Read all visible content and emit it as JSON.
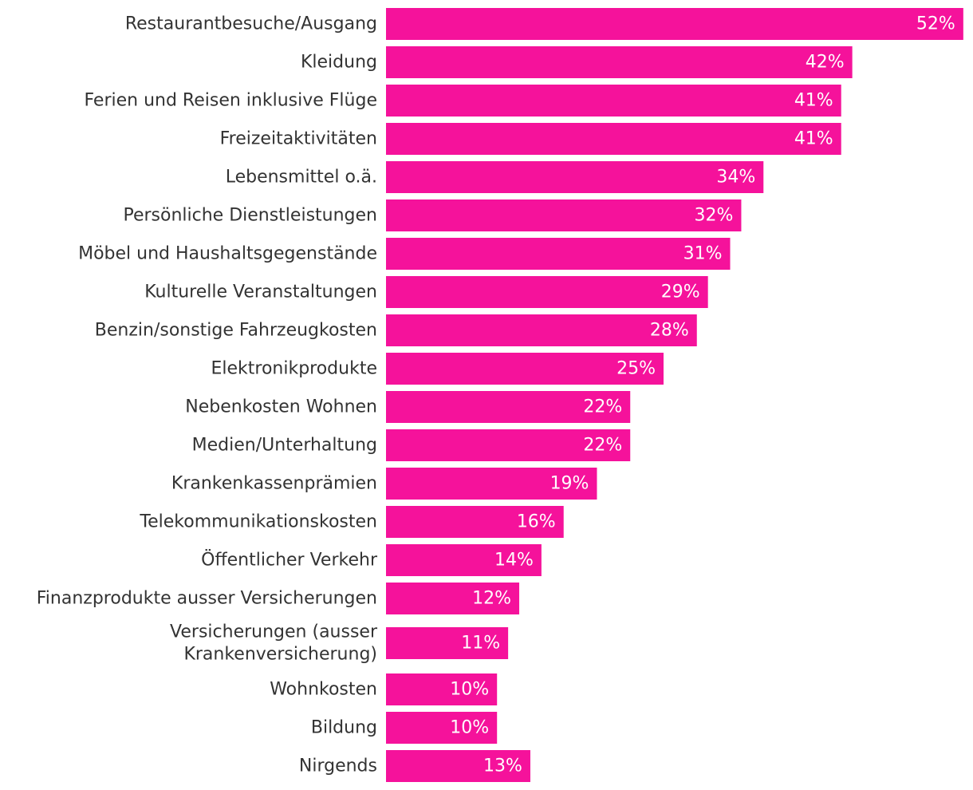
{
  "chart_data": {
    "type": "bar",
    "orientation": "horizontal",
    "categories": [
      "Restaurantbesuche/Ausgang",
      "Kleidung",
      "Ferien und Reisen inklusive Flüge",
      "Freizeitaktivitäten",
      "Lebensmittel o.ä.",
      "Persönliche Dienstleistungen",
      "Möbel und Haushaltsgegenstände",
      "Kulturelle Veranstaltungen",
      "Benzin/sonstige Fahrzeugkosten",
      "Elektronikprodukte",
      "Nebenkosten Wohnen",
      "Medien/Unterhaltung",
      "Krankenkassenprämien",
      "Telekommunikationskosten",
      "Öffentlicher Verkehr",
      "Finanzprodukte ausser Versicherungen",
      "Versicherungen (ausser Krankenversicherung)",
      "Wohnkosten",
      "Bildung",
      "Nirgends"
    ],
    "values": [
      52,
      42,
      41,
      41,
      34,
      32,
      31,
      29,
      28,
      25,
      22,
      22,
      19,
      16,
      14,
      12,
      11,
      10,
      10,
      13
    ],
    "value_labels": [
      "52%",
      "42%",
      "41%",
      "41%",
      "34%",
      "32%",
      "31%",
      "29%",
      "28%",
      "25%",
      "22%",
      "22%",
      "19%",
      "16%",
      "14%",
      "12%",
      "11%",
      "10%",
      "10%",
      "13%"
    ],
    "value_unit": "%",
    "title": "",
    "xlabel": "",
    "ylabel": "",
    "xlim": [
      0,
      52
    ],
    "grid": false,
    "legend": "none",
    "bar_color": "#f5129b",
    "label_color": "#333333",
    "value_label_color": "#ffffff"
  }
}
